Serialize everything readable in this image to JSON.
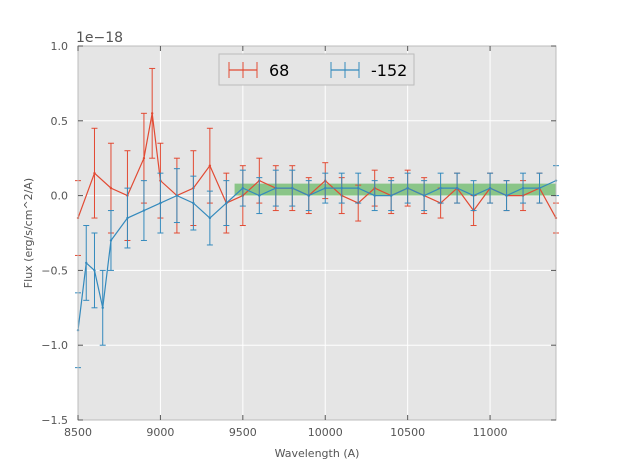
{
  "chart_data": {
    "type": "line",
    "title": "",
    "xlabel": "Wavelength (A)",
    "ylabel": "Flux (erg/s/cm^2/A)",
    "y_offset_label": "1e−18",
    "xlim": [
      8500,
      11400
    ],
    "ylim": [
      -1.5,
      1.0
    ],
    "xticks": [
      8500,
      9000,
      9500,
      10000,
      10500,
      11000
    ],
    "xtick_labels": [
      "8500",
      "9000",
      "9500",
      "10000",
      "10500",
      "11000"
    ],
    "yticks": [
      -1.5,
      -1.0,
      -0.5,
      0.0,
      0.5,
      1.0
    ],
    "ytick_labels": [
      "−1.5",
      "−1.0",
      "−0.5",
      "0.0",
      "0.5",
      "1.0"
    ],
    "grid": true,
    "legend_position": "top-center",
    "background_color": "#e5e5e5",
    "band": {
      "x_start": 9450,
      "x_end": 11400,
      "y_low": 0.0,
      "y_high": 0.08,
      "color": "#4daf4a"
    },
    "series": [
      {
        "name": "68",
        "color": "#e24a33",
        "x": [
          8500,
          8600,
          8700,
          8800,
          8900,
          8950,
          9000,
          9100,
          9200,
          9300,
          9400,
          9500,
          9600,
          9700,
          9800,
          9900,
          10000,
          10100,
          10200,
          10300,
          10400,
          10500,
          10600,
          10700,
          10800,
          10900,
          11000,
          11100,
          11200,
          11300,
          11400
        ],
        "y": [
          -0.15,
          0.15,
          0.05,
          0.0,
          0.25,
          0.55,
          0.1,
          0.0,
          0.05,
          0.2,
          -0.05,
          0.0,
          0.1,
          0.05,
          0.05,
          0.0,
          0.1,
          0.0,
          -0.05,
          0.05,
          0.0,
          0.05,
          0.0,
          -0.05,
          0.05,
          -0.1,
          0.05,
          0.0,
          0.0,
          0.05,
          -0.15
        ],
        "err": [
          0.25,
          0.3,
          0.3,
          0.3,
          0.3,
          0.3,
          0.25,
          0.25,
          0.25,
          0.25,
          0.2,
          0.2,
          0.15,
          0.15,
          0.15,
          0.12,
          0.12,
          0.12,
          0.12,
          0.12,
          0.12,
          0.12,
          0.12,
          0.1,
          0.1,
          0.1,
          0.1,
          0.1,
          0.1,
          0.1,
          0.1
        ]
      },
      {
        "name": "-152",
        "color": "#348abd",
        "x": [
          8500,
          8550,
          8600,
          8650,
          8700,
          8800,
          8900,
          9000,
          9100,
          9200,
          9300,
          9400,
          9500,
          9600,
          9700,
          9800,
          9900,
          10000,
          10100,
          10200,
          10300,
          10400,
          10500,
          10600,
          10700,
          10800,
          10900,
          11000,
          11100,
          11200,
          11300,
          11400
        ],
        "y": [
          -0.9,
          -0.45,
          -0.5,
          -0.75,
          -0.3,
          -0.15,
          -0.1,
          -0.05,
          0.0,
          -0.05,
          -0.15,
          -0.05,
          0.05,
          0.0,
          0.05,
          0.05,
          0.0,
          0.05,
          0.05,
          0.05,
          0.0,
          0.0,
          0.05,
          0.0,
          0.05,
          0.05,
          0.0,
          0.05,
          0.0,
          0.05,
          0.05,
          0.1
        ],
        "err": [
          0.25,
          0.25,
          0.25,
          0.25,
          0.2,
          0.2,
          0.2,
          0.2,
          0.18,
          0.18,
          0.18,
          0.15,
          0.12,
          0.12,
          0.12,
          0.12,
          0.1,
          0.1,
          0.1,
          0.1,
          0.1,
          0.1,
          0.1,
          0.1,
          0.1,
          0.1,
          0.1,
          0.1,
          0.1,
          0.1,
          0.1,
          0.1
        ]
      }
    ]
  }
}
